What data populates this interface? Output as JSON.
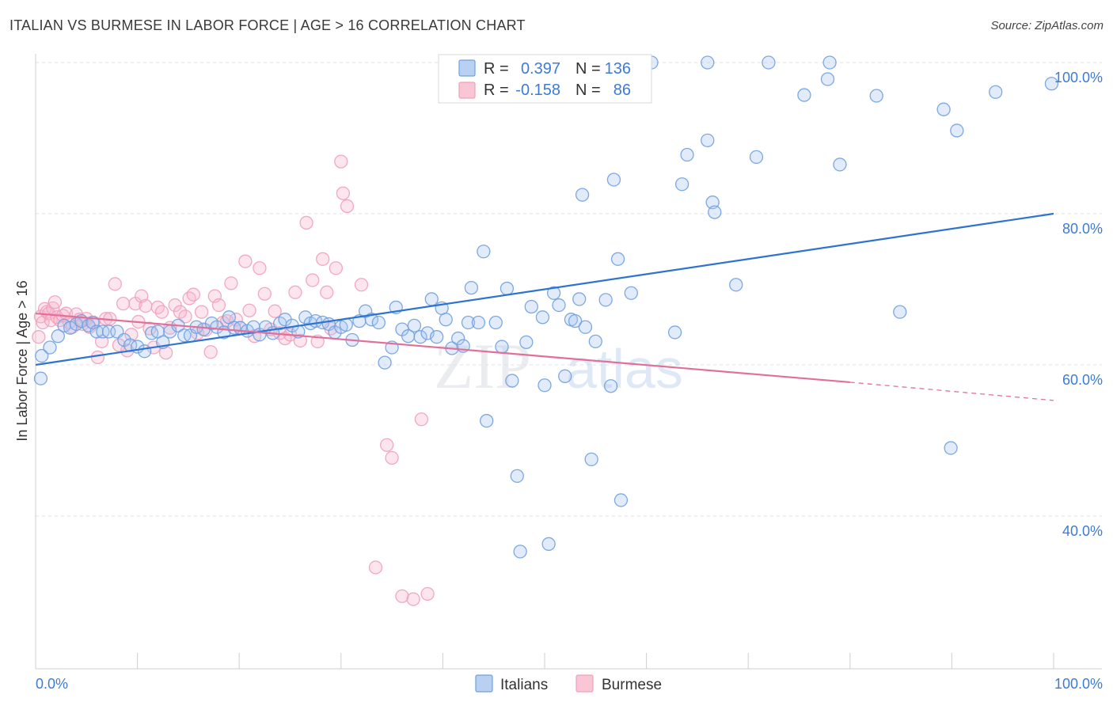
{
  "header": {
    "title": "ITALIAN VS BURMESE IN LABOR FORCE | AGE > 16 CORRELATION CHART",
    "source": "Source: ZipAtlas.com"
  },
  "watermark": {
    "zip": "ZIP",
    "atlas": "atlas"
  },
  "chart_data": {
    "type": "scatter",
    "title": "ITALIAN VS BURMESE IN LABOR FORCE | AGE > 16 CORRELATION CHART",
    "xlabel": "",
    "ylabel": "In Labor Force | Age > 16",
    "xlim": [
      0,
      100
    ],
    "ylim": [
      20,
      100
    ],
    "x_tick_labels": [
      "0.0%",
      "100.0%"
    ],
    "y_ticks": [
      40,
      60,
      80,
      100
    ],
    "y_tick_labels": [
      "40.0%",
      "60.0%",
      "80.0%",
      "100.0%"
    ],
    "grid": "horizontal dashed",
    "legend_placement": "top-center",
    "colors": {
      "Italians": "#6fa0e0",
      "Burmese": "#f0a0bc",
      "italians_line": "#2f73d0",
      "burmese_line": "#e0709a"
    },
    "stats": [
      {
        "series": "Italians",
        "r_label": "R =",
        "r": "0.397",
        "n_label": "N =",
        "n": "136"
      },
      {
        "series": "Burmese",
        "r_label": "R =",
        "r": "-0.158",
        "n_label": "N =",
        "n": "86"
      }
    ],
    "trend_lines": [
      {
        "series": "Italians",
        "x": [
          0,
          100
        ],
        "y": [
          60.0,
          80.0
        ]
      },
      {
        "series": "Burmese",
        "x": [
          0,
          80
        ],
        "y": [
          66.8,
          57.7
        ],
        "dashed_extension_to": [
          100,
          55.3
        ]
      }
    ],
    "series": [
      {
        "name": "Italians",
        "points": [
          [
            0.5,
            58.2
          ],
          [
            0.6,
            61.2
          ],
          [
            1.4,
            62.3
          ],
          [
            2.2,
            63.8
          ],
          [
            2.8,
            65.2
          ],
          [
            3.4,
            64.9
          ],
          [
            4.0,
            65.4
          ],
          [
            4.5,
            65.8
          ],
          [
            5.2,
            65.2
          ],
          [
            5.6,
            65.6
          ],
          [
            6.0,
            64.4
          ],
          [
            6.6,
            64.4
          ],
          [
            7.2,
            64.4
          ],
          [
            8.0,
            64.4
          ],
          [
            8.7,
            63.3
          ],
          [
            9.3,
            62.6
          ],
          [
            10.0,
            62.4
          ],
          [
            10.7,
            61.8
          ],
          [
            11.4,
            64.2
          ],
          [
            12.0,
            64.4
          ],
          [
            12.5,
            63.0
          ],
          [
            13.2,
            64.4
          ],
          [
            14.0,
            65.2
          ],
          [
            14.6,
            63.9
          ],
          [
            15.2,
            63.9
          ],
          [
            15.8,
            65.0
          ],
          [
            16.5,
            64.7
          ],
          [
            17.3,
            65.5
          ],
          [
            17.8,
            65.0
          ],
          [
            18.5,
            64.3
          ],
          [
            19.0,
            66.3
          ],
          [
            19.5,
            64.9
          ],
          [
            20.1,
            64.9
          ],
          [
            20.8,
            64.5
          ],
          [
            21.4,
            65.0
          ],
          [
            22.0,
            64.0
          ],
          [
            22.6,
            65.0
          ],
          [
            23.3,
            64.2
          ],
          [
            24.0,
            65.5
          ],
          [
            24.5,
            66.0
          ],
          [
            25.2,
            65.2
          ],
          [
            25.8,
            64.4
          ],
          [
            26.5,
            66.3
          ],
          [
            27.0,
            65.5
          ],
          [
            27.5,
            65.8
          ],
          [
            28.2,
            65.6
          ],
          [
            28.8,
            65.4
          ],
          [
            29.4,
            64.3
          ],
          [
            30.0,
            65.0
          ],
          [
            30.5,
            65.3
          ],
          [
            31.1,
            63.3
          ],
          [
            31.8,
            65.8
          ],
          [
            32.4,
            67.1
          ],
          [
            33.0,
            66.0
          ],
          [
            33.7,
            65.6
          ],
          [
            34.3,
            60.3
          ],
          [
            35.0,
            62.3
          ],
          [
            35.4,
            67.6
          ],
          [
            36.0,
            64.7
          ],
          [
            36.6,
            63.8
          ],
          [
            37.2,
            65.2
          ],
          [
            37.8,
            63.7
          ],
          [
            38.5,
            64.2
          ],
          [
            38.9,
            68.7
          ],
          [
            39.4,
            63.7
          ],
          [
            39.9,
            67.5
          ],
          [
            40.3,
            66.0
          ],
          [
            40.9,
            62.2
          ],
          [
            41.5,
            63.5
          ],
          [
            42.0,
            62.5
          ],
          [
            42.5,
            65.6
          ],
          [
            42.8,
            70.2
          ],
          [
            43.5,
            65.6
          ],
          [
            44.0,
            75.0
          ],
          [
            44.3,
            52.6
          ],
          [
            45.2,
            65.6
          ],
          [
            45.8,
            62.4
          ],
          [
            46.3,
            70.1
          ],
          [
            46.8,
            57.9
          ],
          [
            47.3,
            45.3
          ],
          [
            47.6,
            35.3
          ],
          [
            48.2,
            63.0
          ],
          [
            48.7,
            67.7
          ],
          [
            49.8,
            66.3
          ],
          [
            50.0,
            57.3
          ],
          [
            50.4,
            36.3
          ],
          [
            50.9,
            69.5
          ],
          [
            51.4,
            67.9
          ],
          [
            52.0,
            58.5
          ],
          [
            52.6,
            66.0
          ],
          [
            53.0,
            65.8
          ],
          [
            53.4,
            68.7
          ],
          [
            53.7,
            82.5
          ],
          [
            54.0,
            65.0
          ],
          [
            54.6,
            47.5
          ],
          [
            55.0,
            63.1
          ],
          [
            56.0,
            68.6
          ],
          [
            56.5,
            57.2
          ],
          [
            56.8,
            84.5
          ],
          [
            57.2,
            74.0
          ],
          [
            57.5,
            42.1
          ],
          [
            58.5,
            69.5
          ],
          [
            62.8,
            64.3
          ],
          [
            63.5,
            83.9
          ],
          [
            64.0,
            87.8
          ],
          [
            66.0,
            89.7
          ],
          [
            66.5,
            81.5
          ],
          [
            66.7,
            80.2
          ],
          [
            68.8,
            70.6
          ],
          [
            70.8,
            87.5
          ],
          [
            75.5,
            95.7
          ],
          [
            77.8,
            97.8
          ],
          [
            79.0,
            86.5
          ],
          [
            82.6,
            95.6
          ],
          [
            84.9,
            67.0
          ],
          [
            89.2,
            93.8
          ],
          [
            89.9,
            49.0
          ],
          [
            90.5,
            91.0
          ],
          [
            94.3,
            96.1
          ],
          [
            99.8,
            97.2
          ],
          [
            50.0,
            100.0
          ],
          [
            55.0,
            100.0
          ],
          [
            60.5,
            100.0
          ],
          [
            66.0,
            100.0
          ],
          [
            72.0,
            100.0
          ],
          [
            78.0,
            100.0
          ]
        ]
      },
      {
        "name": "Burmese",
        "points": [
          [
            0.3,
            63.7
          ],
          [
            0.5,
            66.4
          ],
          [
            0.7,
            65.6
          ],
          [
            0.9,
            67.4
          ],
          [
            1.1,
            67.0
          ],
          [
            1.3,
            66.8
          ],
          [
            1.5,
            65.9
          ],
          [
            1.7,
            67.5
          ],
          [
            1.9,
            68.3
          ],
          [
            2.1,
            66.3
          ],
          [
            2.4,
            65.9
          ],
          [
            2.7,
            66.5
          ],
          [
            3.0,
            66.8
          ],
          [
            3.3,
            65.6
          ],
          [
            3.6,
            65.0
          ],
          [
            4.0,
            66.7
          ],
          [
            4.3,
            66.0
          ],
          [
            4.6,
            65.4
          ],
          [
            5.0,
            66.1
          ],
          [
            5.3,
            65.0
          ],
          [
            5.7,
            65.6
          ],
          [
            6.1,
            61.0
          ],
          [
            6.5,
            63.1
          ],
          [
            6.9,
            66.1
          ],
          [
            7.3,
            66.1
          ],
          [
            7.8,
            70.7
          ],
          [
            8.2,
            62.6
          ],
          [
            8.6,
            68.1
          ],
          [
            9.0,
            61.9
          ],
          [
            9.4,
            64.0
          ],
          [
            9.8,
            68.1
          ],
          [
            10.1,
            65.7
          ],
          [
            10.4,
            69.1
          ],
          [
            10.8,
            67.8
          ],
          [
            11.2,
            64.8
          ],
          [
            11.6,
            62.3
          ],
          [
            12.0,
            67.6
          ],
          [
            12.4,
            67.0
          ],
          [
            12.8,
            61.6
          ],
          [
            13.2,
            64.9
          ],
          [
            13.7,
            67.9
          ],
          [
            14.2,
            67.0
          ],
          [
            14.7,
            66.4
          ],
          [
            15.1,
            68.8
          ],
          [
            15.5,
            69.3
          ],
          [
            15.9,
            64.2
          ],
          [
            16.3,
            67.0
          ],
          [
            16.7,
            64.6
          ],
          [
            17.2,
            61.7
          ],
          [
            17.6,
            69.1
          ],
          [
            18.0,
            67.9
          ],
          [
            18.4,
            65.6
          ],
          [
            18.8,
            65.8
          ],
          [
            19.2,
            70.8
          ],
          [
            19.7,
            66.0
          ],
          [
            20.1,
            64.9
          ],
          [
            20.6,
            73.7
          ],
          [
            21.0,
            67.2
          ],
          [
            21.5,
            63.8
          ],
          [
            22.0,
            72.8
          ],
          [
            22.5,
            69.4
          ],
          [
            23.1,
            64.7
          ],
          [
            23.5,
            67.1
          ],
          [
            24.0,
            64.2
          ],
          [
            24.5,
            63.5
          ],
          [
            25.0,
            64.0
          ],
          [
            25.5,
            69.6
          ],
          [
            26.0,
            63.2
          ],
          [
            26.6,
            78.8
          ],
          [
            27.2,
            71.2
          ],
          [
            27.7,
            63.1
          ],
          [
            28.2,
            74.0
          ],
          [
            28.6,
            69.6
          ],
          [
            29.0,
            64.8
          ],
          [
            29.5,
            72.8
          ],
          [
            30.0,
            86.9
          ],
          [
            30.2,
            82.7
          ],
          [
            30.6,
            81.0
          ],
          [
            32.0,
            70.6
          ],
          [
            33.4,
            33.2
          ],
          [
            34.5,
            49.4
          ],
          [
            35.0,
            47.7
          ],
          [
            36.0,
            29.4
          ],
          [
            37.1,
            29.0
          ],
          [
            37.9,
            52.8
          ],
          [
            38.5,
            29.7
          ]
        ]
      }
    ]
  },
  "bottom_legend": {
    "italians": "Italians",
    "burmese": "Burmese"
  }
}
